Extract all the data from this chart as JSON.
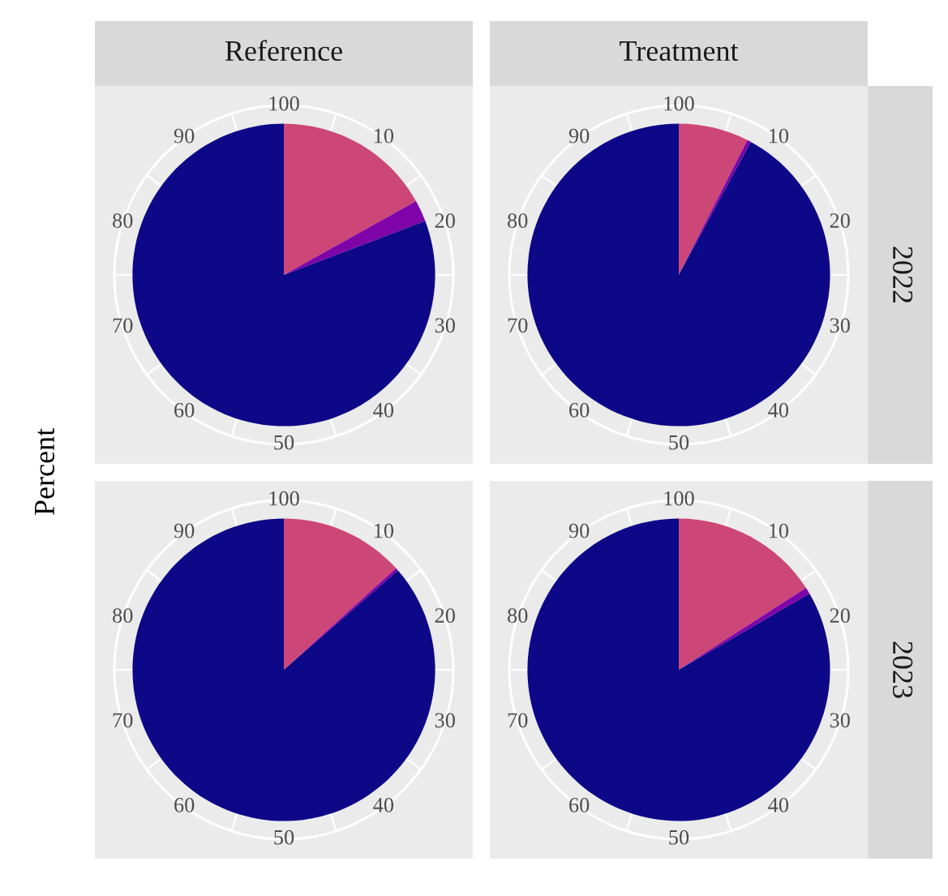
{
  "chart_data": [
    {
      "type": "pie",
      "title": "Reference",
      "ylabel": "Percent",
      "categories": [
        null,
        null,
        null
      ],
      "values": [
        16.9,
        2.3,
        80.8
      ],
      "colors": [
        "#cc4778",
        "#7e03a8",
        "#0d0887"
      ],
      "annotations": [
        "100",
        "10",
        "20",
        "30",
        "40",
        "50",
        "60",
        "70",
        "80",
        "90"
      ],
      "grid": true
    },
    {
      "type": "pie",
      "title": "Treatment",
      "subtitle": "2022",
      "categories": [
        null,
        null,
        null
      ],
      "values": [
        7.5,
        0.4,
        92.1
      ],
      "colors": [
        "#cc4778",
        "#7e03a8",
        "#0d0887"
      ],
      "annotations": [
        "100",
        "10",
        "20",
        "30",
        "40",
        "50",
        "60",
        "70",
        "80",
        "90"
      ],
      "grid": true
    },
    {
      "type": "pie",
      "categories": [
        null,
        null,
        null
      ],
      "values": [
        13.3,
        0.3,
        86.4
      ],
      "colors": [
        "#cc4778",
        "#7e03a8",
        "#0d0887"
      ],
      "annotations": [
        "100",
        "10",
        "20",
        "30",
        "40",
        "50",
        "60",
        "70",
        "80",
        "90"
      ],
      "grid": true
    },
    {
      "type": "pie",
      "subtitle": "2023",
      "categories": [
        null,
        null,
        null
      ],
      "values": [
        15.9,
        0.7,
        83.4
      ],
      "colors": [
        "#cc4778",
        "#7e03a8",
        "#0d0887"
      ],
      "annotations": [
        "100",
        "10",
        "20",
        "30",
        "40",
        "50",
        "60",
        "70",
        "80",
        "90"
      ],
      "grid": true
    }
  ]
}
